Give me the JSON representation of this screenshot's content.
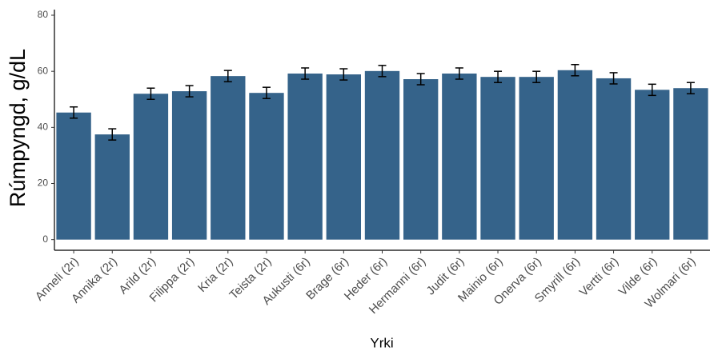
{
  "chart_data": {
    "type": "bar",
    "xlabel": "Yrki",
    "ylabel": "Rúmpyngd, g/dL",
    "categories": [
      "Anneli (2r)",
      "Annika (2r)",
      "Arild (2r)",
      "Filippa (2r)",
      "Kria (2r)",
      "Teista (2r)",
      "Aukusti (6r)",
      "Brage (6r)",
      "Heder (6r)",
      "Hermanni (6r)",
      "Judit (6r)",
      "Mainio (6r)",
      "Onerva (6r)",
      "Smyrill (6r)",
      "Vertti (6r)",
      "Vilde (6r)",
      "Wolmari (6r)"
    ],
    "values": [
      45.3,
      37.5,
      52,
      52.9,
      58.3,
      52.3,
      59.2,
      58.9,
      60.1,
      57.2,
      59.2,
      58,
      58,
      60.4,
      57.5,
      53.4,
      54
    ],
    "errors": [
      2,
      2,
      2,
      2,
      2,
      2,
      2,
      2,
      2,
      2,
      2,
      2,
      2,
      2,
      2,
      2,
      2
    ],
    "color": "#35638a",
    "ylim": [
      -3.8,
      82
    ],
    "yticks": [
      0,
      20,
      40,
      60,
      80
    ],
    "grid": false
  }
}
